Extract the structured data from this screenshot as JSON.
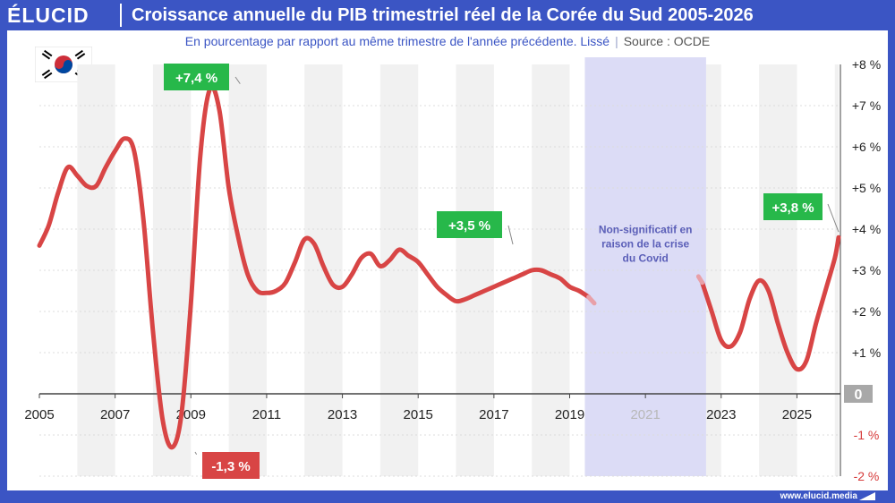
{
  "header": {
    "logo": "ÉLUCID",
    "title": "Croissance annuelle du PIB trimestriel réel de la Corée du Sud 2005-2026"
  },
  "subtitle": {
    "text": "En pourcentage par rapport au même trimestre de l'année précédente. Lissé",
    "separator": "|",
    "source": "Source : OCDE"
  },
  "footer": {
    "url": "www.elucid.media"
  },
  "colors": {
    "brand": "#3b55c4",
    "line": "#d84545",
    "line_faded": "#e8a0a8",
    "positive_callout": "#27b84a",
    "negative_callout": "#d84545",
    "covid_band": "#dcdcf6",
    "zero_badge": "#a8a8a8"
  },
  "icons": {
    "flag": "south-korea-flag-icon"
  },
  "chart_data": {
    "type": "line",
    "title": "Croissance annuelle du PIB trimestriel réel de la Corée du Sud 2005-2026",
    "ylim": [
      -2,
      8
    ],
    "xlim": [
      2005,
      2026.1
    ],
    "grid": true,
    "y_ticks": [
      {
        "value": 8,
        "label": "+8 %"
      },
      {
        "value": 7,
        "label": "+7 %"
      },
      {
        "value": 6,
        "label": "+6 %"
      },
      {
        "value": 5,
        "label": "+5 %"
      },
      {
        "value": 4,
        "label": "+4 %"
      },
      {
        "value": 3,
        "label": "+3 %"
      },
      {
        "value": 2,
        "label": "+2 %"
      },
      {
        "value": 1,
        "label": "+1 %"
      },
      {
        "value": 0,
        "label": "0"
      },
      {
        "value": -1,
        "label": "-1 %"
      },
      {
        "value": -2,
        "label": "-2 %"
      }
    ],
    "x_ticks": [
      {
        "value": 2005,
        "label": "2005"
      },
      {
        "value": 2007,
        "label": "2007"
      },
      {
        "value": 2009,
        "label": "2009"
      },
      {
        "value": 2011,
        "label": "2011"
      },
      {
        "value": 2013,
        "label": "2013"
      },
      {
        "value": 2015,
        "label": "2015"
      },
      {
        "value": 2017,
        "label": "2017"
      },
      {
        "value": 2019,
        "label": "2019"
      },
      {
        "value": 2021,
        "label": "2021"
      },
      {
        "value": 2023,
        "label": "2023"
      },
      {
        "value": 2025,
        "label": "2025"
      }
    ],
    "covid_period": {
      "start": 2019.4,
      "end": 2022.6,
      "label_lines": [
        "Non-significatif en",
        "raison de la crise",
        "du Covid"
      ]
    },
    "series": [
      {
        "x": [
          2005.0,
          2005.25,
          2005.5,
          2005.75,
          2006.0,
          2006.25,
          2006.5,
          2006.75,
          2007.0,
          2007.25,
          2007.5,
          2007.75,
          2008.0,
          2008.25,
          2008.5,
          2008.75,
          2009.0,
          2009.25,
          2009.5,
          2009.75,
          2010.0,
          2010.25,
          2010.5,
          2010.75,
          2011.0,
          2011.25,
          2011.5,
          2011.75,
          2012.0,
          2012.25,
          2012.5,
          2012.75,
          2013.0,
          2013.25,
          2013.5,
          2013.75,
          2014.0,
          2014.25,
          2014.5,
          2014.75,
          2015.0,
          2015.25,
          2015.5,
          2015.75,
          2016.0,
          2016.25,
          2016.5,
          2016.75,
          2017.0,
          2017.25,
          2017.5,
          2017.75,
          2018.0,
          2018.25,
          2018.5,
          2018.75,
          2019.0,
          2019.25,
          2019.5
        ],
        "values": [
          3.6,
          4.1,
          4.9,
          5.5,
          5.3,
          5.05,
          5.05,
          5.5,
          5.9,
          6.2,
          5.9,
          4.2,
          1.5,
          -0.6,
          -1.3,
          -0.5,
          2.2,
          5.8,
          7.4,
          6.9,
          5.0,
          3.8,
          2.9,
          2.5,
          2.45,
          2.5,
          2.7,
          3.2,
          3.75,
          3.65,
          3.1,
          2.65,
          2.6,
          2.9,
          3.3,
          3.4,
          3.1,
          3.25,
          3.5,
          3.35,
          3.2,
          2.9,
          2.6,
          2.4,
          2.25,
          2.3,
          2.4,
          2.5,
          2.6,
          2.7,
          2.8,
          2.9,
          3.0,
          3.0,
          2.9,
          2.8,
          2.6,
          2.5,
          2.35
        ]
      },
      {
        "x": [
          2022.5,
          2022.75,
          2023.0,
          2023.25,
          2023.5,
          2023.75,
          2024.0,
          2024.25,
          2024.5,
          2024.75,
          2025.0,
          2025.25,
          2025.5,
          2025.75,
          2026.0,
          2026.1
        ],
        "values": [
          2.7,
          2.0,
          1.3,
          1.15,
          1.5,
          2.3,
          2.75,
          2.5,
          1.7,
          1.0,
          0.6,
          0.8,
          1.7,
          2.5,
          3.3,
          3.8
        ]
      }
    ],
    "annotations": [
      {
        "x": 2010.3,
        "y": 7.4,
        "label": "+7,4 %",
        "kind": "positive"
      },
      {
        "x": 2009.15,
        "y": -1.3,
        "label": "-1,3 %",
        "kind": "negative"
      },
      {
        "x": 2017.5,
        "y": 3.5,
        "label": "+3,5 %",
        "kind": "positive"
      },
      {
        "x": 2026.1,
        "y": 3.8,
        "label": "+3,8 %",
        "kind": "positive"
      }
    ]
  }
}
